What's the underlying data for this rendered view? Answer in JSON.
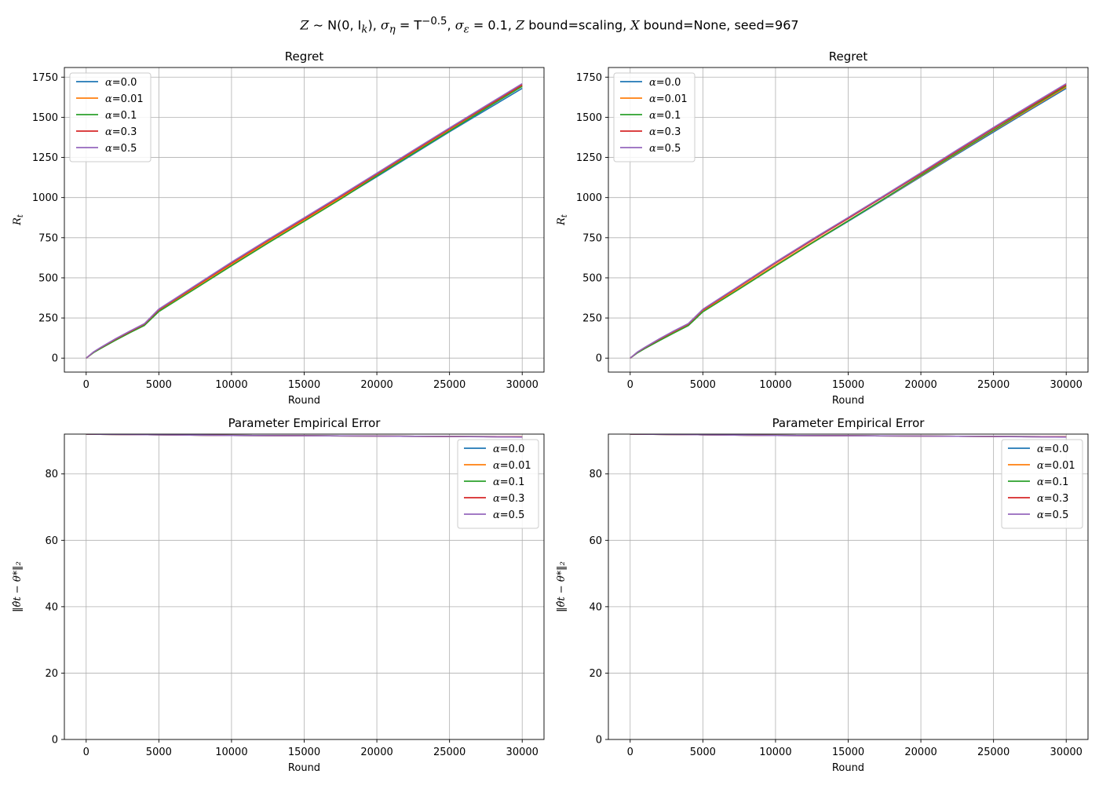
{
  "figure": {
    "suptitle_parts": {
      "z": "Z",
      "dist": " ∼ N(0, I",
      "dist_sub": "k",
      "close": ")",
      "sig_eta": "σ",
      "sig_eta_sub": "η",
      "sig_eta_eq": " = T",
      "sig_eta_exp": "−0.5",
      "sig_eps": "σ",
      "sig_eps_sub": "ε",
      "sig_eps_eq": " = 0.1",
      "zbound": "Z",
      "zbound_text": " bound=scaling, ",
      "xbound": "X",
      "xbound_text": " bound=None, seed=967"
    }
  },
  "chart_data": [
    {
      "type": "line",
      "title": "Regret",
      "xlabel": "Round",
      "ylabel": "R_t",
      "xlim": [
        -1500,
        31500
      ],
      "ylim": [
        -87,
        1810
      ],
      "xticks": [
        0,
        5000,
        10000,
        15000,
        20000,
        25000,
        30000
      ],
      "yticks": [
        0,
        250,
        500,
        750,
        1000,
        1250,
        1500,
        1750
      ],
      "grid": true,
      "legend": "top-left",
      "series": [
        {
          "name": "α=0.0",
          "color": "#1f77b4",
          "x": [
            0,
            500,
            1000,
            2000,
            3000,
            4000,
            5000,
            7500,
            10000,
            12500,
            15000,
            17500,
            20000,
            22500,
            25000,
            27500,
            30000
          ],
          "y": [
            0,
            35,
            62,
            112,
            160,
            205,
            292,
            435,
            580,
            720,
            855,
            992,
            1130,
            1270,
            1410,
            1545,
            1680
          ]
        },
        {
          "name": "α=0.01",
          "color": "#ff7f0e",
          "x": [
            0,
            500,
            1000,
            2000,
            3000,
            4000,
            5000,
            7500,
            10000,
            12500,
            15000,
            17500,
            20000,
            22500,
            25000,
            27500,
            30000
          ],
          "y": [
            0,
            36,
            63,
            114,
            162,
            208,
            295,
            440,
            585,
            725,
            860,
            998,
            1138,
            1280,
            1420,
            1558,
            1695
          ]
        },
        {
          "name": "α=0.1",
          "color": "#2ca02c",
          "x": [
            0,
            500,
            1000,
            2000,
            3000,
            4000,
            5000,
            7500,
            10000,
            12500,
            15000,
            17500,
            20000,
            22500,
            25000,
            27500,
            30000
          ],
          "y": [
            0,
            34,
            60,
            110,
            158,
            203,
            290,
            432,
            575,
            716,
            852,
            990,
            1135,
            1275,
            1415,
            1555,
            1692
          ]
        },
        {
          "name": "α=0.3",
          "color": "#d62728",
          "x": [
            0,
            500,
            1000,
            2000,
            3000,
            4000,
            5000,
            7500,
            10000,
            12500,
            15000,
            17500,
            20000,
            22500,
            25000,
            27500,
            30000
          ],
          "y": [
            0,
            37,
            65,
            117,
            165,
            211,
            300,
            447,
            592,
            733,
            868,
            1006,
            1146,
            1288,
            1428,
            1565,
            1702
          ]
        },
        {
          "name": "α=0.5",
          "color": "#9467bd",
          "x": [
            0,
            500,
            1000,
            2000,
            3000,
            4000,
            5000,
            7500,
            10000,
            12500,
            15000,
            17500,
            20000,
            22500,
            25000,
            27500,
            30000
          ],
          "y": [
            0,
            38,
            67,
            120,
            168,
            214,
            305,
            452,
            598,
            738,
            874,
            1012,
            1152,
            1294,
            1434,
            1572,
            1710
          ]
        }
      ]
    },
    {
      "type": "line",
      "title": "Regret",
      "xlabel": "Round",
      "ylabel": "R_t",
      "xlim": [
        -1500,
        31500
      ],
      "ylim": [
        -87,
        1810
      ],
      "xticks": [
        0,
        5000,
        10000,
        15000,
        20000,
        25000,
        30000
      ],
      "yticks": [
        0,
        250,
        500,
        750,
        1000,
        1250,
        1500,
        1750
      ],
      "grid": true,
      "legend": "top-left",
      "series": [
        {
          "name": "α=0.0",
          "color": "#1f77b4",
          "x": [
            0,
            500,
            1000,
            2000,
            3000,
            4000,
            5000,
            7500,
            10000,
            12500,
            15000,
            17500,
            20000,
            22500,
            25000,
            27500,
            30000
          ],
          "y": [
            0,
            34,
            60,
            110,
            158,
            204,
            290,
            432,
            575,
            716,
            852,
            990,
            1130,
            1270,
            1408,
            1545,
            1680
          ]
        },
        {
          "name": "α=0.01",
          "color": "#ff7f0e",
          "x": [
            0,
            500,
            1000,
            2000,
            3000,
            4000,
            5000,
            7500,
            10000,
            12500,
            15000,
            17500,
            20000,
            22500,
            25000,
            27500,
            30000
          ],
          "y": [
            0,
            35,
            62,
            112,
            160,
            206,
            293,
            436,
            580,
            720,
            856,
            994,
            1135,
            1276,
            1416,
            1552,
            1688
          ]
        },
        {
          "name": "α=0.1",
          "color": "#2ca02c",
          "x": [
            0,
            500,
            1000,
            2000,
            3000,
            4000,
            5000,
            7500,
            10000,
            12500,
            15000,
            17500,
            20000,
            22500,
            25000,
            27500,
            30000
          ],
          "y": [
            0,
            33,
            59,
            108,
            156,
            202,
            288,
            430,
            574,
            716,
            855,
            995,
            1138,
            1280,
            1420,
            1558,
            1695
          ]
        },
        {
          "name": "α=0.3",
          "color": "#d62728",
          "x": [
            0,
            500,
            1000,
            2000,
            3000,
            4000,
            5000,
            7500,
            10000,
            12500,
            15000,
            17500,
            20000,
            22500,
            25000,
            27500,
            30000
          ],
          "y": [
            0,
            37,
            65,
            117,
            166,
            212,
            300,
            446,
            592,
            733,
            870,
            1008,
            1148,
            1290,
            1430,
            1566,
            1702
          ]
        },
        {
          "name": "α=0.5",
          "color": "#9467bd",
          "x": [
            0,
            500,
            1000,
            2000,
            3000,
            4000,
            5000,
            7500,
            10000,
            12500,
            15000,
            17500,
            20000,
            22500,
            25000,
            27500,
            30000
          ],
          "y": [
            0,
            38,
            67,
            120,
            169,
            215,
            304,
            451,
            598,
            739,
            876,
            1014,
            1155,
            1297,
            1437,
            1574,
            1710
          ]
        }
      ]
    },
    {
      "type": "line",
      "title": "Parameter Empirical Error",
      "xlabel": "Round",
      "ylabel": "‖θ̂_t − θ_*‖_2",
      "xlim": [
        -1500,
        31500
      ],
      "ylim": [
        0,
        92
      ],
      "xticks": [
        0,
        5000,
        10000,
        15000,
        20000,
        25000,
        30000
      ],
      "yticks": [
        0,
        20,
        40,
        60,
        80
      ],
      "grid": true,
      "legend": "top-right",
      "series": [
        {
          "name": "α=0.0",
          "color": "#1f77b4",
          "x": [
            0,
            5000,
            10000,
            15000,
            20000,
            25000,
            30000
          ],
          "y": [
            92.0,
            91.8,
            91.6,
            91.5,
            91.4,
            91.3,
            91.2
          ]
        },
        {
          "name": "α=0.01",
          "color": "#ff7f0e",
          "x": [
            0,
            5000,
            10000,
            15000,
            20000,
            25000,
            30000
          ],
          "y": [
            92.0,
            91.8,
            91.6,
            91.5,
            91.4,
            91.3,
            91.2
          ]
        },
        {
          "name": "α=0.1",
          "color": "#2ca02c",
          "x": [
            0,
            5000,
            10000,
            15000,
            20000,
            25000,
            30000
          ],
          "y": [
            92.0,
            91.8,
            91.6,
            91.5,
            91.4,
            91.3,
            91.2
          ]
        },
        {
          "name": "α=0.3",
          "color": "#d62728",
          "x": [
            0,
            5000,
            10000,
            15000,
            20000,
            25000,
            30000
          ],
          "y": [
            92.0,
            91.8,
            91.6,
            91.5,
            91.4,
            91.3,
            91.2
          ]
        },
        {
          "name": "α=0.5",
          "color": "#9467bd",
          "x": [
            0,
            5000,
            10000,
            15000,
            20000,
            25000,
            30000
          ],
          "y": [
            92.0,
            91.8,
            91.6,
            91.5,
            91.4,
            91.3,
            91.1
          ]
        }
      ]
    },
    {
      "type": "line",
      "title": "Parameter Empirical Error",
      "xlabel": "Round",
      "ylabel": "‖θ̂_t − θ_*‖_2",
      "xlim": [
        -1500,
        31500
      ],
      "ylim": [
        0,
        92
      ],
      "xticks": [
        0,
        5000,
        10000,
        15000,
        20000,
        25000,
        30000
      ],
      "yticks": [
        0,
        20,
        40,
        60,
        80
      ],
      "grid": true,
      "legend": "top-right",
      "series": [
        {
          "name": "α=0.0",
          "color": "#1f77b4",
          "x": [
            0,
            5000,
            10000,
            15000,
            20000,
            25000,
            30000
          ],
          "y": [
            92.0,
            91.8,
            91.6,
            91.5,
            91.4,
            91.3,
            91.2
          ]
        },
        {
          "name": "α=0.01",
          "color": "#ff7f0e",
          "x": [
            0,
            5000,
            10000,
            15000,
            20000,
            25000,
            30000
          ],
          "y": [
            92.0,
            91.8,
            91.6,
            91.5,
            91.4,
            91.3,
            91.2
          ]
        },
        {
          "name": "α=0.1",
          "color": "#2ca02c",
          "x": [
            0,
            5000,
            10000,
            15000,
            20000,
            25000,
            30000
          ],
          "y": [
            92.0,
            91.8,
            91.6,
            91.5,
            91.4,
            91.3,
            91.2
          ]
        },
        {
          "name": "α=0.3",
          "color": "#d62728",
          "x": [
            0,
            5000,
            10000,
            15000,
            20000,
            25000,
            30000
          ],
          "y": [
            92.0,
            91.8,
            91.6,
            91.5,
            91.4,
            91.3,
            91.2
          ]
        },
        {
          "name": "α=0.5",
          "color": "#9467bd",
          "x": [
            0,
            5000,
            10000,
            15000,
            20000,
            25000,
            30000
          ],
          "y": [
            92.0,
            91.8,
            91.6,
            91.5,
            91.4,
            91.3,
            91.1
          ]
        }
      ]
    }
  ]
}
